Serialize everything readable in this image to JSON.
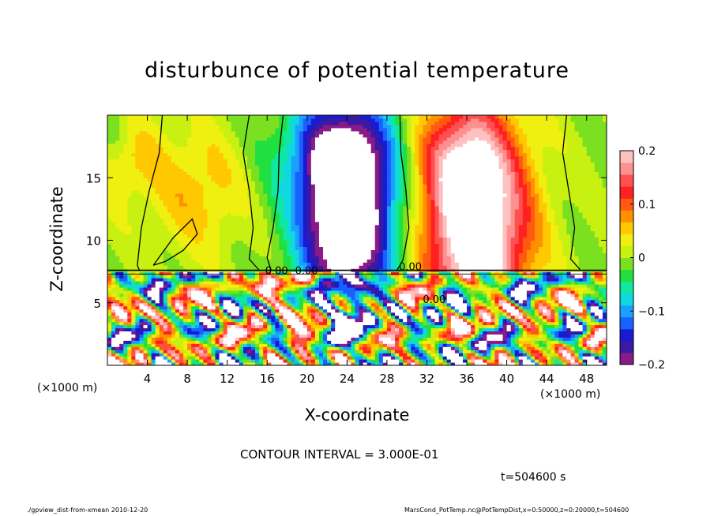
{
  "chart_data": {
    "type": "heatmap",
    "title": "disturbunce of potential temperature",
    "xlabel": "X-coordinate",
    "ylabel": "Z-coordinate",
    "x_unit_left": "(×1000 m)",
    "x_unit_right": "(×1000 m)",
    "x_ticks": [
      4,
      8,
      12,
      16,
      20,
      24,
      28,
      32,
      36,
      40,
      44,
      48
    ],
    "y_ticks": [
      5,
      10,
      15
    ],
    "xlim": [
      0,
      50
    ],
    "ylim": [
      0,
      20
    ],
    "colorbar": {
      "range": [
        -0.2,
        0.2
      ],
      "ticks": [
        {
          "value": 0.2,
          "label": "0.2"
        },
        {
          "value": 0.1,
          "label": "0.1"
        },
        {
          "value": 0,
          "label": "0"
        },
        {
          "value": -0.1,
          "label": "−0.1"
        },
        {
          "value": -0.2,
          "label": "−0.2"
        }
      ],
      "colors": [
        "#8a1a8a",
        "#3a1aa0",
        "#1a1ad0",
        "#1a60ff",
        "#1aa0ff",
        "#10d8e0",
        "#10e8a0",
        "#20e040",
        "#7ae020",
        "#c8f010",
        "#f0f010",
        "#ffc800",
        "#ff9000",
        "#ff5a10",
        "#ff2020",
        "#ff5050",
        "#ff9090",
        "#ffc0c0"
      ]
    },
    "contour_labels": [
      {
        "x": 15.8,
        "z": 7.3,
        "text": "0.00"
      },
      {
        "x": 18.8,
        "z": 7.3,
        "text": "0.00"
      },
      {
        "x": 29.2,
        "z": 7.6,
        "text": "0.00"
      },
      {
        "x": 31.6,
        "z": 5.0,
        "text": "0.00"
      }
    ],
    "contour_interval": "CONTOUR INTERVAL = 3.000E-01",
    "time_label": "t=504600 s",
    "footer_left": "./gpview_dist-from-xmean   2010-12-20",
    "footer_right": "MarsCond_PotTemp.nc@PotTempDist,x=0:50000,z=0:20000,t=504600",
    "grid": false
  }
}
